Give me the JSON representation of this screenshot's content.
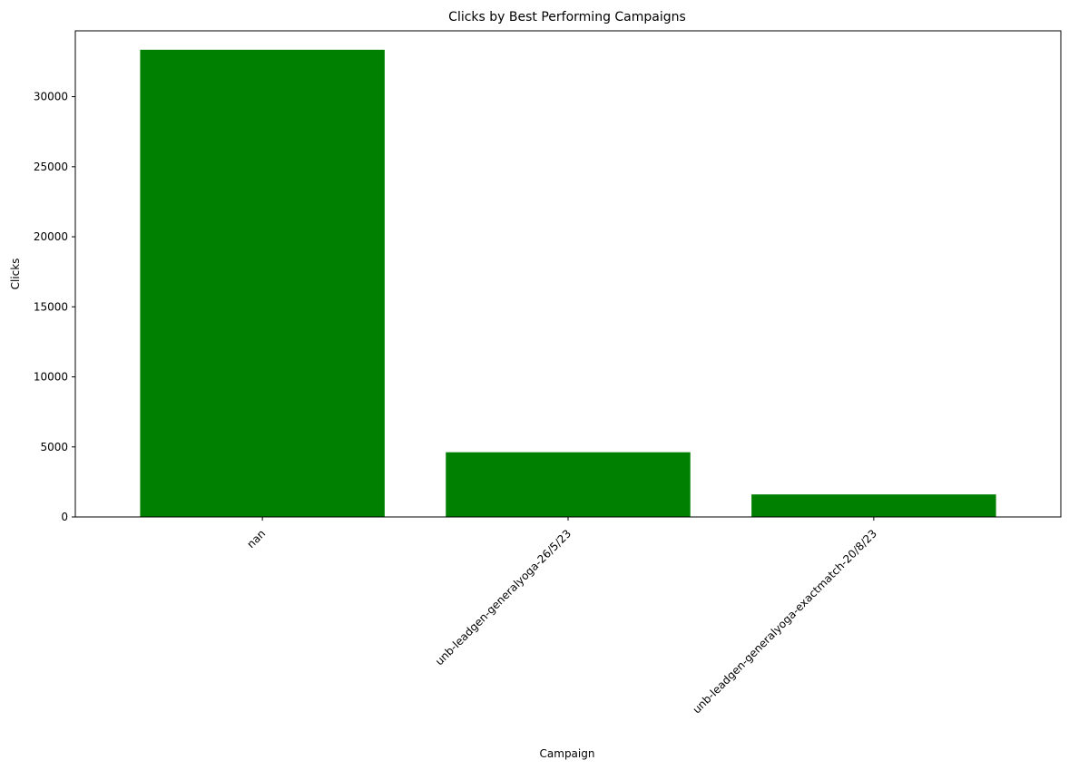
{
  "chart_data": {
    "type": "bar",
    "title": "Clicks by Best Performing Campaigns",
    "xlabel": "Campaign",
    "ylabel": "Clicks",
    "categories": [
      "nan",
      "unb-leadgen-generalyoga-26/5/23",
      "unb-leadgen-generalyoga-exactmatch-20/8/23"
    ],
    "values": [
      33350,
      4620,
      1610
    ],
    "ylim": [
      0,
      34700
    ],
    "yticks": [
      0,
      5000,
      10000,
      15000,
      20000,
      25000,
      30000
    ],
    "grid": false,
    "bar_color": "#008000",
    "xtick_rotation": 45
  }
}
